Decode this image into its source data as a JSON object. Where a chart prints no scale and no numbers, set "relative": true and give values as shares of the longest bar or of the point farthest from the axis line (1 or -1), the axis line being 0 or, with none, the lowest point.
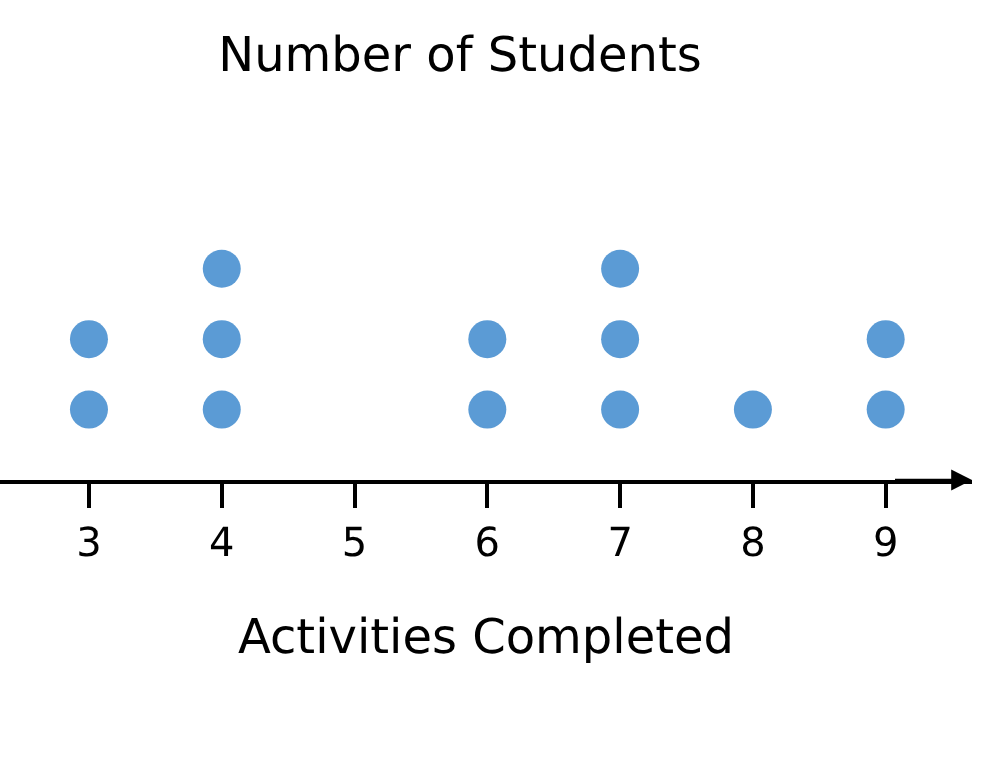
{
  "chart_data": {
    "type": "scatter",
    "title": "Number of Students",
    "xlabel": "Activities Completed",
    "relative": true,
    "x": [
      3,
      3,
      4,
      4,
      4,
      6,
      6,
      7,
      7,
      7,
      8,
      9,
      9
    ],
    "series": [
      {
        "color": "#5b9bd5",
        "values": [
          0.3333,
          0.6667,
          0.3333,
          0.6667,
          1,
          0.3333,
          0.6667,
          0.3333,
          0.6667,
          1,
          0.3333,
          0.3333,
          0.6667
        ]
      }
    ],
    "xlim": [
      2.33,
      9.65
    ],
    "xticks": [
      3,
      4,
      5,
      6,
      7,
      8,
      9
    ],
    "marker": "circle"
  }
}
